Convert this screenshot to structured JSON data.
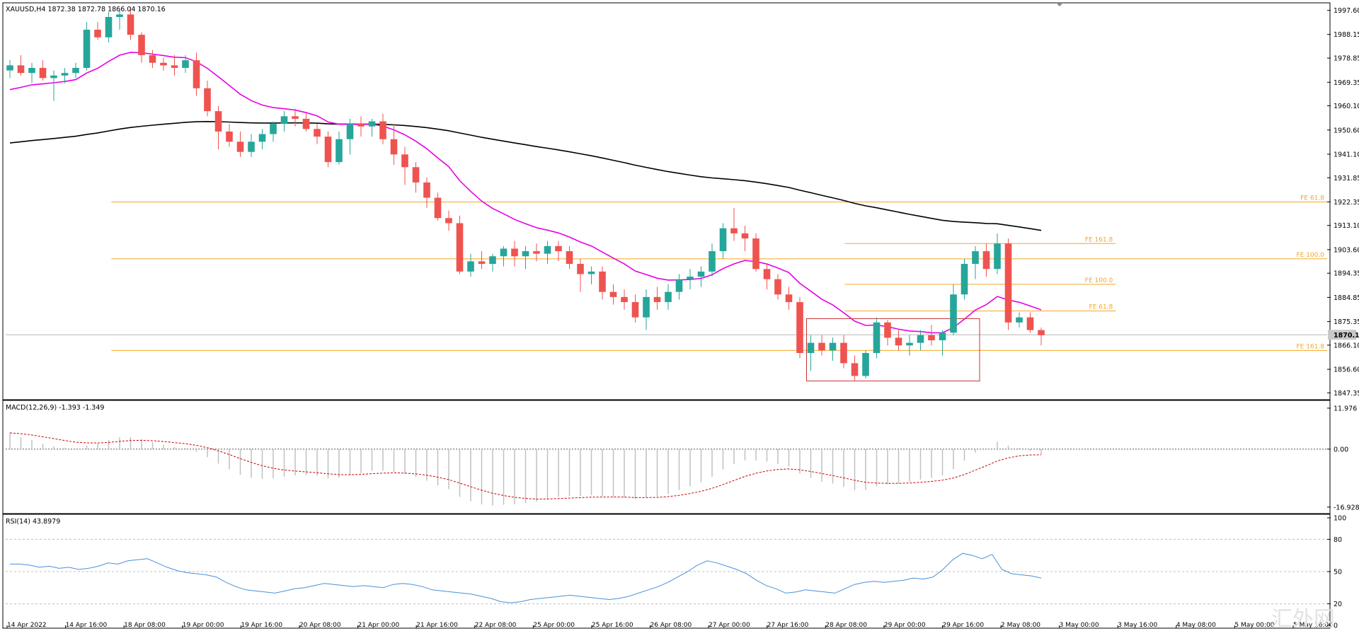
{
  "instrument": "XAUUSD,H4",
  "header_text": "XAUUSD,H4  1872.38 1872.78 1866.04 1870.16",
  "watermark": "汇外网",
  "colors": {
    "bull": "#26a69a",
    "bear": "#ef5350",
    "ma_fast": "#e600e6",
    "ma_slow": "#000000",
    "fibo": "#f5a623",
    "macd_hist": "#c0c0c0",
    "macd_signal": "#cc0000",
    "rsi": "#4a90d9",
    "current_price_bg": "#c8c8c8"
  },
  "chart_data": [
    {
      "type": "candlestick",
      "title": "XAUUSD,H4",
      "ohlc_header": {
        "open": 1872.38,
        "high": 1872.78,
        "low": 1866.04,
        "close": 1870.16
      },
      "y_ticks": [
        "1997.60",
        "1988.15",
        "1978.85",
        "1969.35",
        "1960.10",
        "1950.60",
        "1941.10",
        "1931.85",
        "1922.35",
        "1913.10",
        "1903.60",
        "1894.35",
        "1884.85",
        "1875.35",
        "1866.10",
        "1856.60",
        "1847.35"
      ],
      "ylim": [
        1845.5,
        2000
      ],
      "current_price": "1870.16",
      "x_labels": [
        "14 Apr 2022",
        "14 Apr 16:00",
        "18 Apr 08:00",
        "19 Apr 00:00",
        "19 Apr 16:00",
        "20 Apr 08:00",
        "21 Apr 00:00",
        "21 Apr 16:00",
        "22 Apr 08:00",
        "25 Apr 00:00",
        "25 Apr 16:00",
        "26 Apr 08:00",
        "27 Apr 00:00",
        "27 Apr 16:00",
        "28 Apr 08:00",
        "29 Apr 00:00",
        "29 Apr 16:00",
        "2 May 08:00",
        "3 May 00:00",
        "3 May 16:00",
        "4 May 08:00",
        "5 May 00:00",
        "5 May 16:00"
      ],
      "candles": [
        [
          1974,
          1978,
          1971,
          1976
        ],
        [
          1976,
          1980,
          1972,
          1973
        ],
        [
          1973,
          1977,
          1969,
          1975
        ],
        [
          1975,
          1978,
          1970,
          1971
        ],
        [
          1971,
          1974,
          1962,
          1972
        ],
        [
          1972,
          1975,
          1969,
          1973
        ],
        [
          1973,
          1977,
          1971,
          1975
        ],
        [
          1975,
          1993,
          1974,
          1990
        ],
        [
          1990,
          1993,
          1986,
          1987
        ],
        [
          1987,
          1997,
          1985,
          1995
        ],
        [
          1995,
          1998,
          1990,
          1996
        ],
        [
          1996,
          1999,
          1986,
          1988
        ],
        [
          1988,
          1989,
          1977,
          1980
        ],
        [
          1980,
          1982,
          1975,
          1977
        ],
        [
          1977,
          1979,
          1974,
          1976
        ],
        [
          1976,
          1980,
          1972,
          1975
        ],
        [
          1975,
          1980,
          1973,
          1978
        ],
        [
          1978,
          1981,
          1964,
          1967
        ],
        [
          1967,
          1970,
          1956,
          1958
        ],
        [
          1958,
          1960,
          1943,
          1950
        ],
        [
          1950,
          1953,
          1944,
          1946
        ],
        [
          1946,
          1950,
          1940,
          1942
        ],
        [
          1942,
          1949,
          1940,
          1946
        ],
        [
          1946,
          1951,
          1943,
          1949
        ],
        [
          1949,
          1954,
          1946,
          1953
        ],
        [
          1953,
          1958,
          1950,
          1956
        ],
        [
          1956,
          1959,
          1952,
          1955
        ],
        [
          1955,
          1957,
          1950,
          1951
        ],
        [
          1951,
          1953,
          1945,
          1948
        ],
        [
          1948,
          1950,
          1936,
          1938
        ],
        [
          1938,
          1950,
          1937,
          1947
        ],
        [
          1947,
          1955,
          1941,
          1953
        ],
        [
          1953,
          1956,
          1948,
          1952
        ],
        [
          1952,
          1955,
          1948,
          1954
        ],
        [
          1954,
          1957,
          1945,
          1947
        ],
        [
          1947,
          1953,
          1937,
          1941
        ],
        [
          1941,
          1944,
          1929,
          1936
        ],
        [
          1936,
          1938,
          1926,
          1930
        ],
        [
          1930,
          1932,
          1920,
          1924
        ],
        [
          1924,
          1926,
          1915,
          1916
        ],
        [
          1916,
          1919,
          1911,
          1914
        ],
        [
          1914,
          1917,
          1894,
          1895
        ],
        [
          1895,
          1902,
          1893,
          1899
        ],
        [
          1899,
          1903,
          1896,
          1898
        ],
        [
          1898,
          1902,
          1895,
          1901
        ],
        [
          1901,
          1905,
          1897,
          1904
        ],
        [
          1904,
          1907,
          1897,
          1901
        ],
        [
          1901,
          1905,
          1896,
          1903
        ],
        [
          1903,
          1906,
          1899,
          1902
        ],
        [
          1902,
          1907,
          1898,
          1905
        ],
        [
          1905,
          1907,
          1899,
          1903
        ],
        [
          1903,
          1905,
          1896,
          1898
        ],
        [
          1898,
          1900,
          1887,
          1894
        ],
        [
          1894,
          1897,
          1890,
          1895
        ],
        [
          1895,
          1897,
          1884,
          1887
        ],
        [
          1887,
          1890,
          1882,
          1885
        ],
        [
          1885,
          1888,
          1880,
          1883
        ],
        [
          1883,
          1886,
          1875,
          1877
        ],
        [
          1877,
          1888,
          1872,
          1885
        ],
        [
          1885,
          1889,
          1880,
          1883
        ],
        [
          1883,
          1890,
          1880,
          1887
        ],
        [
          1887,
          1894,
          1884,
          1892
        ],
        [
          1892,
          1896,
          1888,
          1893
        ],
        [
          1893,
          1897,
          1889,
          1895
        ],
        [
          1895,
          1906,
          1893,
          1903
        ],
        [
          1903,
          1914,
          1900,
          1912
        ],
        [
          1912,
          1920,
          1907,
          1910
        ],
        [
          1910,
          1913,
          1903,
          1908
        ],
        [
          1908,
          1910,
          1895,
          1896
        ],
        [
          1896,
          1898,
          1888,
          1892
        ],
        [
          1892,
          1894,
          1884,
          1886
        ],
        [
          1886,
          1889,
          1880,
          1883
        ],
        [
          1883,
          1885,
          1861,
          1863
        ],
        [
          1863,
          1870,
          1856,
          1867
        ],
        [
          1867,
          1870,
          1862,
          1864
        ],
        [
          1864,
          1869,
          1860,
          1867
        ],
        [
          1867,
          1870,
          1857,
          1859
        ],
        [
          1859,
          1862,
          1852,
          1854
        ],
        [
          1854,
          1864,
          1853,
          1863
        ],
        [
          1863,
          1877,
          1861,
          1875
        ],
        [
          1875,
          1876,
          1866,
          1869
        ],
        [
          1869,
          1872,
          1864,
          1866
        ],
        [
          1866,
          1870,
          1862,
          1867
        ],
        [
          1867,
          1872,
          1864,
          1870
        ],
        [
          1870,
          1874,
          1866,
          1868
        ],
        [
          1868,
          1872,
          1862,
          1871
        ],
        [
          1871,
          1890,
          1870,
          1886
        ],
        [
          1886,
          1900,
          1884,
          1898
        ],
        [
          1898,
          1905,
          1892,
          1903
        ],
        [
          1903,
          1906,
          1893,
          1896
        ],
        [
          1896,
          1910,
          1894,
          1906
        ],
        [
          1906,
          1908,
          1872,
          1875
        ],
        [
          1875,
          1879,
          1873,
          1877
        ],
        [
          1877,
          1879,
          1871,
          1872
        ],
        [
          1872,
          1873,
          1866,
          1870
        ]
      ],
      "ma_fast_start": 1965,
      "ma_slow_start": 1945,
      "fibo_levels": [
        {
          "label": "FE 61.8",
          "price": 1922.35,
          "x_from": 0.08,
          "x_to": 1.0
        },
        {
          "label": "FE 100.0",
          "price": 1900.0,
          "x_from": 0.08,
          "x_to": 1.0
        },
        {
          "label": "FE 161.8",
          "price": 1864.0,
          "x_from": 0.08,
          "x_to": 1.0
        },
        {
          "label": "FE 161.8",
          "price": 1906.0,
          "x_from": 0.635,
          "x_to": 0.84
        },
        {
          "label": "FE 100.0",
          "price": 1890.0,
          "x_from": 0.635,
          "x_to": 0.84
        },
        {
          "label": "FE 61.8",
          "price": 1879.5,
          "x_from": 0.635,
          "x_to": 0.84
        }
      ],
      "box": {
        "x0_index": 73,
        "x1_index": 88,
        "y_top": 1876.5,
        "y_bottom": 1852.0
      }
    },
    {
      "type": "macd",
      "title": "MACD(12,26,9) -1.393 -1.349",
      "y_ticks": [
        "11.976",
        "0.00",
        "-16.928"
      ],
      "ylim": [
        -18,
        13
      ]
    },
    {
      "type": "rsi",
      "title": "RSI(14) 43.8979",
      "y_ticks": [
        "100",
        "80",
        "50",
        "20",
        "0"
      ],
      "ylim": [
        0,
        100
      ],
      "values": [
        57,
        57,
        56,
        54,
        55,
        53,
        54,
        52,
        53,
        55,
        58,
        57,
        60,
        61,
        62,
        58,
        54,
        51,
        49,
        48,
        47,
        45,
        40,
        36,
        33,
        32,
        31,
        30,
        32,
        34,
        35,
        37,
        39,
        38,
        37,
        36,
        37,
        36,
        35,
        38,
        39,
        38,
        36,
        33,
        32,
        31,
        30,
        29,
        27,
        25,
        22,
        21,
        22,
        24,
        25,
        26,
        27,
        28,
        27,
        26,
        25,
        24,
        25,
        27,
        30,
        33,
        36,
        40,
        45,
        50,
        56,
        60,
        58,
        55,
        52,
        48,
        42,
        37,
        34,
        30,
        31,
        33,
        32,
        31,
        30,
        34,
        38,
        40,
        41,
        40,
        41,
        42,
        44,
        43,
        45,
        52,
        61,
        67,
        65,
        62,
        66,
        52,
        48,
        47,
        46,
        44
      ]
    }
  ]
}
